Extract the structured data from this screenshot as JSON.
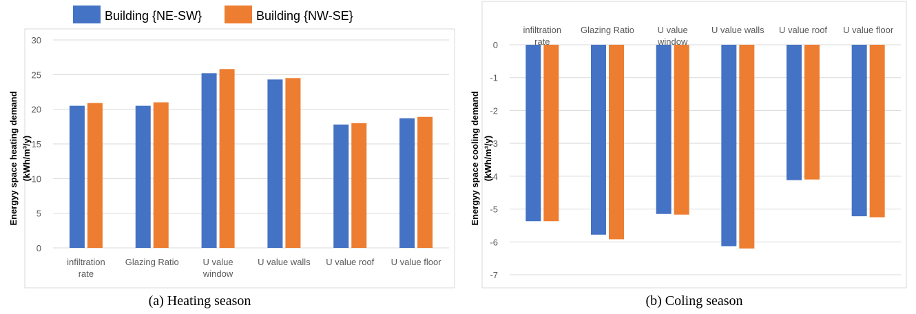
{
  "legend": [
    {
      "label": "Building {NE-SW}",
      "color": "#4472C4"
    },
    {
      "label": "Building {NW-SE}",
      "color": "#ED7D31"
    }
  ],
  "chart_data": [
    {
      "type": "bar",
      "caption": "(a) Heating season",
      "ylabel_lines": [
        "Energyy space heating demand",
        "(kWh/m³/y)"
      ],
      "categories": [
        [
          "infiltration",
          "rate"
        ],
        [
          "Glazing Ratio"
        ],
        [
          "U value",
          "window"
        ],
        [
          "U value walls"
        ],
        [
          "U value roof"
        ],
        [
          "U value floor"
        ]
      ],
      "series": [
        {
          "name": "Building {NE-SW}",
          "values": [
            20.5,
            20.5,
            25.2,
            24.3,
            17.8,
            18.7
          ]
        },
        {
          "name": "Building {NW-SE}",
          "values": [
            20.9,
            21.0,
            25.8,
            24.5,
            18.0,
            18.9
          ]
        }
      ],
      "ylim": [
        0,
        30
      ],
      "yticks": [
        0,
        5,
        10,
        15,
        20,
        25,
        30
      ],
      "grid": true
    },
    {
      "type": "bar",
      "caption": "(b) Coling season",
      "ylabel_lines": [
        "Energyy space cooling demand",
        "(kWh/m³/y)"
      ],
      "categories": [
        [
          "infiltration",
          "rate"
        ],
        [
          "Glazing Ratio"
        ],
        [
          "U value",
          "window"
        ],
        [
          "U value walls"
        ],
        [
          "U value roof"
        ],
        [
          "U value floor"
        ]
      ],
      "series": [
        {
          "name": "Building {NE-SW}",
          "values": [
            -5.37,
            -5.78,
            -5.15,
            -6.13,
            -4.12,
            -5.22
          ]
        },
        {
          "name": "Building {NW-SE}",
          "values": [
            -5.37,
            -5.92,
            -5.17,
            -6.2,
            -4.1,
            -5.25
          ]
        }
      ],
      "ylim": [
        -7,
        0
      ],
      "yticks": [
        0,
        -1,
        -2,
        -3,
        -4,
        -5,
        -6,
        -7
      ],
      "grid": true
    }
  ]
}
